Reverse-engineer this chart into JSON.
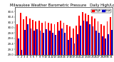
{
  "title": "Milwaukee Weather Barometric Pressure",
  "subtitle": "Daily High/Low",
  "background_color": "#ffffff",
  "high_color": "#ff0000",
  "low_color": "#0000cc",
  "ylim": [
    29.0,
    30.75
  ],
  "yticks": [
    29.0,
    29.2,
    29.4,
    29.6,
    29.8,
    30.0,
    30.2,
    30.4,
    30.6
  ],
  "days": [
    1,
    2,
    3,
    4,
    5,
    6,
    7,
    8,
    9,
    10,
    11,
    12,
    13,
    14,
    15,
    16,
    17,
    18,
    19,
    20,
    21,
    22,
    23,
    24,
    25,
    26,
    27,
    28,
    29,
    30,
    31
  ],
  "highs": [
    30.12,
    30.55,
    30.3,
    30.42,
    30.35,
    30.28,
    30.22,
    30.25,
    30.18,
    30.22,
    30.18,
    30.15,
    30.12,
    30.2,
    30.25,
    30.18,
    30.1,
    30.05,
    29.98,
    30.08,
    30.45,
    30.58,
    30.52,
    30.48,
    30.42,
    30.35,
    30.22,
    30.12,
    30.08,
    30.22,
    30.4
  ],
  "lows": [
    29.6,
    29.18,
    29.92,
    30.12,
    29.98,
    29.88,
    29.95,
    29.9,
    29.82,
    29.95,
    29.88,
    29.82,
    29.74,
    29.9,
    29.98,
    29.8,
    29.55,
    29.62,
    29.4,
    29.75,
    30.08,
    30.25,
    30.22,
    30.12,
    30.05,
    29.9,
    29.8,
    29.68,
    29.6,
    29.75,
    29.92
  ],
  "legend_high": "High",
  "legend_low": "Low",
  "title_fontsize": 3.8,
  "tick_fontsize": 2.8,
  "legend_fontsize": 3.0,
  "bar_width": 0.42
}
